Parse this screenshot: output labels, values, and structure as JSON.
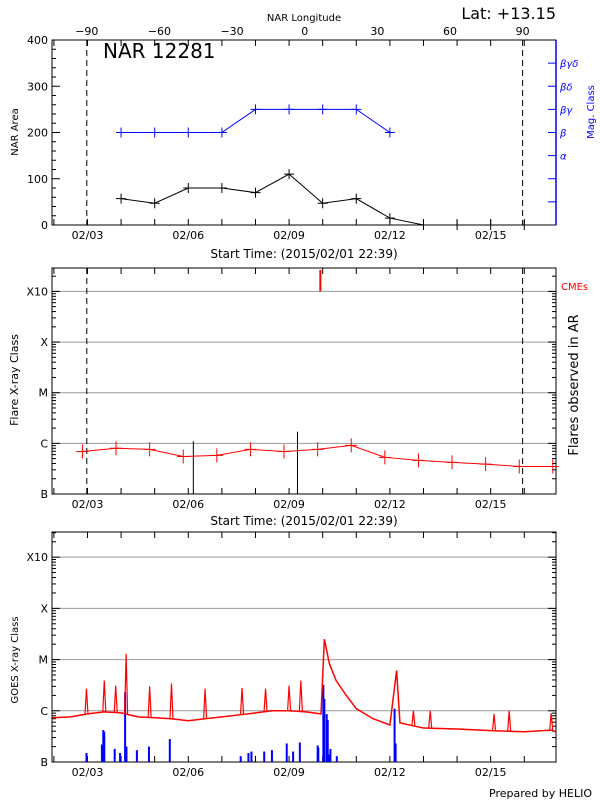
{
  "header": {
    "lat_label": "Lat: +13.15",
    "region_label": "NAR 12281",
    "footer": "Prepared by HELIO"
  },
  "colors": {
    "area": "#000000",
    "mag_class": "#0000ff",
    "flare": "#ff0000",
    "goes": "#ff0000",
    "goes_flares": "#0000ff",
    "cme": "#ff0000",
    "grid": "#999999"
  },
  "x_axis": {
    "range_days_feb": [
      1.944,
      16.944
    ],
    "start_label": "Start Time: (2015/02/01 22:39)",
    "tick_days": [
      3,
      6,
      9,
      12,
      15
    ],
    "tick_labels": [
      "02/03",
      "02/06",
      "02/09",
      "02/12",
      "02/15"
    ],
    "limb_days": [
      2.98,
      15.95
    ]
  },
  "chart_data": [
    {
      "type": "line",
      "title": "NAR 12281",
      "ylabel": "NAR Area",
      "ylim": [
        0,
        400
      ],
      "yticks": [
        0,
        100,
        200,
        300,
        400
      ],
      "top_axis": {
        "label": "NAR Longitude",
        "ticks": [
          -90,
          -60,
          -30,
          0,
          30,
          60,
          90
        ]
      },
      "right_axis": {
        "label": "Mag. Class",
        "ticks": [
          {
            "v": 50,
            "label": ""
          },
          {
            "v": 100,
            "label": ""
          },
          {
            "v": 150,
            "label": "α"
          },
          {
            "v": 200,
            "label": "β"
          },
          {
            "v": 250,
            "label": "βγ"
          },
          {
            "v": 300,
            "label": "βδ"
          },
          {
            "v": 350,
            "label": "βγδ"
          }
        ]
      },
      "series": [
        {
          "x": [
            4,
            5,
            6,
            7,
            8,
            9,
            10,
            11,
            12,
            13,
            14,
            15,
            16
          ],
          "values": [
            57,
            47,
            80,
            80,
            70,
            110,
            47,
            57,
            15,
            0,
            0,
            0,
            0
          ]
        },
        {
          "x": [
            4,
            5,
            6,
            7,
            8,
            9,
            10,
            11,
            12
          ],
          "values": [
            "β",
            "β",
            "β",
            "β",
            "βγ",
            "βγ",
            "βγ",
            "βγ",
            "β"
          ]
        }
      ]
    },
    {
      "type": "line",
      "ylabel": "Flare X-ray Class",
      "right_label": "Flares observed in AR",
      "cme_label": "CMEs",
      "yscale": "log",
      "ylim": [
        1e-07,
        0.0029
      ],
      "yticks": [
        {
          "v": 1e-07,
          "label": "B"
        },
        {
          "v": 1e-06,
          "label": "C"
        },
        {
          "v": 1e-05,
          "label": "M"
        },
        {
          "v": 0.0001,
          "label": "X"
        },
        {
          "v": 0.001,
          "label": "X10"
        }
      ],
      "grid": true,
      "series": [
        {
          "x": [
            2.85,
            3.85,
            4.85,
            5.85,
            6.85,
            7.85,
            8.85,
            9.85,
            10.85,
            11.85,
            12.85,
            13.85,
            14.85,
            15.85,
            16.85
          ],
          "values": [
            6.9e-07,
            8e-07,
            7.6e-07,
            5.5e-07,
            5.8e-07,
            7.6e-07,
            6.9e-07,
            7.6e-07,
            9.1e-07,
            5.3e-07,
            4.6e-07,
            4.2e-07,
            3.9e-07,
            3.5e-07,
            3.5e-07
          ]
        }
      ],
      "flares": [
        {
          "x": 6.15,
          "value": 1.1e-06
        },
        {
          "x": 9.25,
          "value": 1.7e-06
        }
      ],
      "cmes": [
        {
          "x": 9.93
        }
      ]
    },
    {
      "type": "line",
      "ylabel": "GOES X-ray Class",
      "yscale": "log",
      "ylim": [
        1e-07,
        0.0031
      ],
      "yticks": [
        {
          "v": 1e-07,
          "label": "B"
        },
        {
          "v": 1e-06,
          "label": "C"
        },
        {
          "v": 1e-05,
          "label": "M"
        },
        {
          "v": 0.0001,
          "label": "X"
        },
        {
          "v": 0.001,
          "label": "X10"
        }
      ],
      "grid": true,
      "baseline": {
        "x": [
          1.95,
          2.5,
          3.0,
          3.5,
          4.0,
          4.5,
          5.0,
          5.5,
          6.0,
          6.5,
          7.0,
          7.5,
          8.0,
          8.5,
          9.0,
          9.5,
          9.95,
          10.05,
          10.2,
          10.4,
          10.7,
          11.0,
          11.5,
          12.0,
          12.2,
          12.3,
          13.0,
          14.0,
          15.0,
          16.0,
          16.8,
          16.94
        ],
        "values": [
          7.3e-07,
          7.6e-07,
          8.7e-07,
          9.5e-07,
          9.1e-07,
          7.6e-07,
          7.3e-07,
          7e-07,
          6.4e-07,
          7e-07,
          7.6e-07,
          8.3e-07,
          9.1e-07,
          1e-06,
          1e-06,
          9.5e-07,
          8.7e-07,
          2.5e-05,
          8.3e-06,
          3.9e-06,
          2e-06,
          1.1e-06,
          7e-07,
          5.3e-07,
          6.1e-06,
          5.8e-07,
          4.6e-07,
          4.4e-07,
          4.1e-07,
          3.9e-07,
          4.2e-07,
          3.9e-07
        ]
      },
      "spikes": {
        "x": [
          2.97,
          3.5,
          3.84,
          4.15,
          4.85,
          5.5,
          6.5,
          7.6,
          8.3,
          9.0,
          9.35,
          12.7,
          13.2,
          15.1,
          15.55,
          16.8
        ],
        "values": [
          2.7e-06,
          3.9e-06,
          3.1e-06,
          1.3e-05,
          3e-06,
          3.4e-06,
          2.7e-06,
          2.8e-06,
          2.7e-06,
          3.1e-06,
          3.9e-06,
          1e-06,
          1e-06,
          8.7e-07,
          1e-06,
          9e-07
        ]
      },
      "flares": {
        "x": [
          2.97,
          3.43,
          3.47,
          3.5,
          3.81,
          3.97,
          4.12,
          4.16,
          4.47,
          4.83,
          5.45,
          7.56,
          7.79,
          7.88,
          8.26,
          8.49,
          8.93,
          9.12,
          9.32,
          9.85,
          9.87,
          10.02,
          10.05,
          10.12,
          10.15,
          10.19,
          10.23,
          10.42,
          12.14,
          12.17
        ],
        "values": [
          1.5e-07,
          2.2e-07,
          4.2e-07,
          3.9e-07,
          1.8e-07,
          1.5e-07,
          2.3e-06,
          2e-07,
          1.7e-07,
          2e-07,
          2.8e-07,
          1.3e-07,
          1.5e-07,
          1.6e-07,
          1.6e-07,
          1.7e-07,
          2.3e-07,
          1.6e-07,
          2.4e-07,
          2.1e-07,
          1.9e-07,
          3.2e-06,
          1.7e-06,
          8.6e-07,
          6.6e-07,
          1.4e-07,
          1.8e-07,
          1.3e-07,
          1.1e-06,
          2.3e-07
        ]
      }
    }
  ]
}
